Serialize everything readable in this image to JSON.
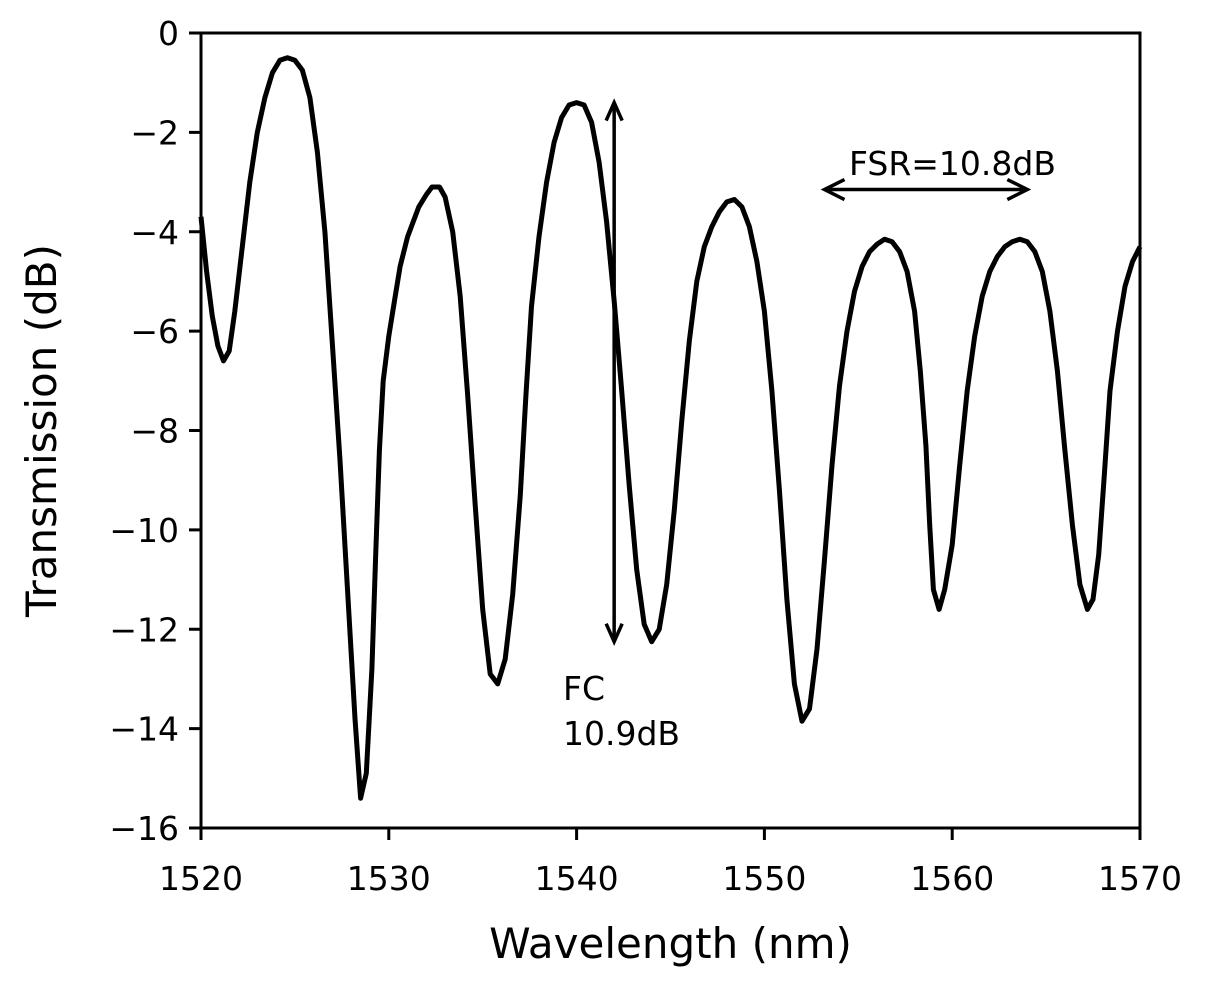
{
  "chart_data": {
    "type": "line",
    "title": "",
    "xlabel": "Wavelength (nm)",
    "ylabel": "Transmission (dB)",
    "xlim": [
      1520,
      1570
    ],
    "ylim": [
      -16,
      0
    ],
    "xticks": [
      1520,
      1530,
      1540,
      1550,
      1560,
      1570
    ],
    "xtick_labels": [
      "1520",
      "1530",
      "1540",
      "1550",
      "1560",
      "1570"
    ],
    "yticks": [
      0,
      -2,
      -4,
      -6,
      -8,
      -10,
      -12,
      -14,
      -16
    ],
    "ytick_labels": [
      "0",
      "−2",
      "−4",
      "−6",
      "−8",
      "−10",
      "−12",
      "−14",
      "−16"
    ],
    "grid": false,
    "line_color": "#000000",
    "series": [
      {
        "x": [
          1520.0,
          1520.3,
          1520.6,
          1520.9,
          1521.2,
          1521.5,
          1521.8,
          1522.2,
          1522.6,
          1523.0,
          1523.4,
          1523.8,
          1524.2,
          1524.6,
          1525.0,
          1525.4,
          1525.8,
          1526.2,
          1526.6,
          1527.0,
          1527.4,
          1527.8,
          1528.2,
          1528.5,
          1528.8,
          1529.1,
          1529.3,
          1529.5,
          1529.7,
          1530.0,
          1530.3,
          1530.6,
          1531.0,
          1531.3,
          1531.6,
          1532.0,
          1532.3,
          1532.7,
          1533.0,
          1533.4,
          1533.8,
          1534.2,
          1534.6,
          1535.0,
          1535.4,
          1535.8,
          1536.2,
          1536.6,
          1537.0,
          1537.3,
          1537.6,
          1538.0,
          1538.4,
          1538.8,
          1539.2,
          1539.6,
          1540.0,
          1540.4,
          1540.8,
          1541.2,
          1541.6,
          1542.0,
          1542.4,
          1542.8,
          1543.2,
          1543.6,
          1544.0,
          1544.4,
          1544.8,
          1545.2,
          1545.6,
          1546.0,
          1546.4,
          1546.8,
          1547.2,
          1547.6,
          1548.0,
          1548.4,
          1548.8,
          1549.2,
          1549.6,
          1550.0,
          1550.4,
          1550.8,
          1551.2,
          1551.6,
          1552.0,
          1552.4,
          1552.8,
          1553.2,
          1553.6,
          1554.0,
          1554.4,
          1554.8,
          1555.2,
          1555.6,
          1556.0,
          1556.4,
          1556.8,
          1557.2,
          1557.6,
          1558.0,
          1558.3,
          1558.6,
          1558.8,
          1559.0,
          1559.3,
          1559.6,
          1560.0,
          1560.4,
          1560.8,
          1561.2,
          1561.6,
          1562.0,
          1562.4,
          1562.8,
          1563.2,
          1563.6,
          1564.0,
          1564.4,
          1564.8,
          1565.2,
          1565.6,
          1566.0,
          1566.4,
          1566.8,
          1567.2,
          1567.5,
          1567.8,
          1568.1,
          1568.4,
          1568.8,
          1569.2,
          1569.6,
          1570.0
        ],
        "values": [
          -3.7,
          -4.8,
          -5.7,
          -6.3,
          -6.6,
          -6.4,
          -5.6,
          -4.3,
          -3.0,
          -2.0,
          -1.3,
          -0.8,
          -0.55,
          -0.5,
          -0.55,
          -0.75,
          -1.3,
          -2.4,
          -4.0,
          -6.3,
          -8.6,
          -11.2,
          -13.8,
          -15.4,
          -14.9,
          -12.8,
          -10.5,
          -8.4,
          -7.0,
          -6.1,
          -5.4,
          -4.7,
          -4.1,
          -3.8,
          -3.5,
          -3.25,
          -3.1,
          -3.1,
          -3.3,
          -4.0,
          -5.3,
          -7.3,
          -9.5,
          -11.6,
          -12.9,
          -13.1,
          -12.6,
          -11.3,
          -9.3,
          -7.3,
          -5.5,
          -4.1,
          -3.0,
          -2.2,
          -1.7,
          -1.45,
          -1.4,
          -1.45,
          -1.8,
          -2.6,
          -3.8,
          -5.4,
          -7.2,
          -9.1,
          -10.8,
          -11.9,
          -12.25,
          -12.0,
          -11.1,
          -9.6,
          -7.8,
          -6.2,
          -5.0,
          -4.3,
          -3.9,
          -3.6,
          -3.4,
          -3.35,
          -3.5,
          -3.9,
          -4.6,
          -5.6,
          -7.2,
          -9.2,
          -11.4,
          -13.1,
          -13.85,
          -13.6,
          -12.4,
          -10.6,
          -8.7,
          -7.1,
          -6.0,
          -5.2,
          -4.7,
          -4.4,
          -4.25,
          -4.15,
          -4.2,
          -4.4,
          -4.8,
          -5.6,
          -6.8,
          -8.3,
          -9.9,
          -11.2,
          -11.6,
          -11.2,
          -10.3,
          -8.7,
          -7.2,
          -6.1,
          -5.3,
          -4.8,
          -4.5,
          -4.3,
          -4.2,
          -4.15,
          -4.2,
          -4.4,
          -4.8,
          -5.6,
          -6.8,
          -8.4,
          -9.9,
          -11.1,
          -11.6,
          -11.4,
          -10.5,
          -8.9,
          -7.2,
          -6.0,
          -5.1,
          -4.6,
          -4.3
        ]
      }
    ],
    "annotations": [
      {
        "text_lines": [
          "FC",
          "10.9dB"
        ],
        "arrow": {
          "x": 1542.0,
          "y_from": -1.4,
          "y_to": -12.25
        }
      },
      {
        "text": "FSR=10.8dB",
        "arrow": {
          "y": -3.15,
          "x_from": 1553.2,
          "x_to": 1564.0
        }
      }
    ]
  }
}
